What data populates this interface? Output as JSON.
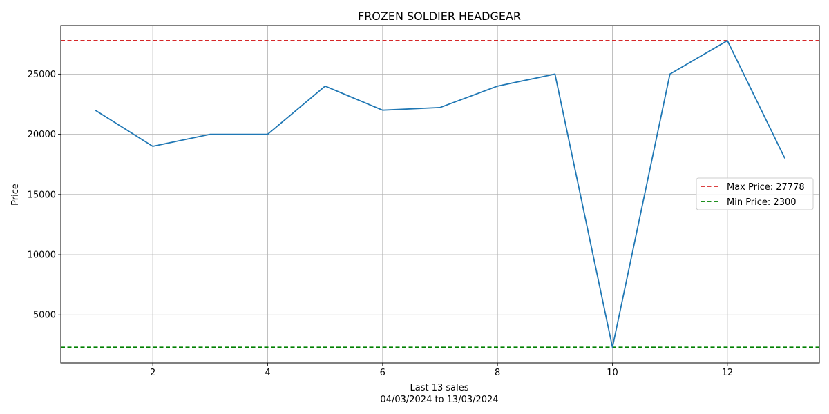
{
  "chart_data": {
    "type": "line",
    "title": "FROZEN SOLDIER HEADGEAR",
    "xlabel": "Last 13 sales",
    "xlabel_sub": "04/03/2024 to 13/03/2024",
    "ylabel": "Price",
    "x": [
      1,
      2,
      3,
      4,
      5,
      6,
      7,
      8,
      9,
      10,
      11,
      12,
      13
    ],
    "series": [
      {
        "values": [
          22000,
          19000,
          20000,
          20000,
          24000,
          22000,
          22222,
          24000,
          25000,
          2300,
          25000,
          27778,
          18000
        ],
        "color": "#1f77b4"
      }
    ],
    "reference_lines": [
      {
        "label": "Max Price: 27778",
        "value": 27778,
        "color": "#d62728",
        "style": "dashed"
      },
      {
        "label": "Min Price: 2300",
        "value": 2300,
        "color": "#008000",
        "style": "dashed"
      }
    ],
    "xlim": [
      0.4,
      13.6
    ],
    "ylim": [
      1000,
      29035
    ],
    "xticks": [
      2,
      4,
      6,
      8,
      10,
      12
    ],
    "yticks": [
      5000,
      10000,
      15000,
      20000,
      25000
    ],
    "grid": true,
    "legend_position": "center-right"
  }
}
